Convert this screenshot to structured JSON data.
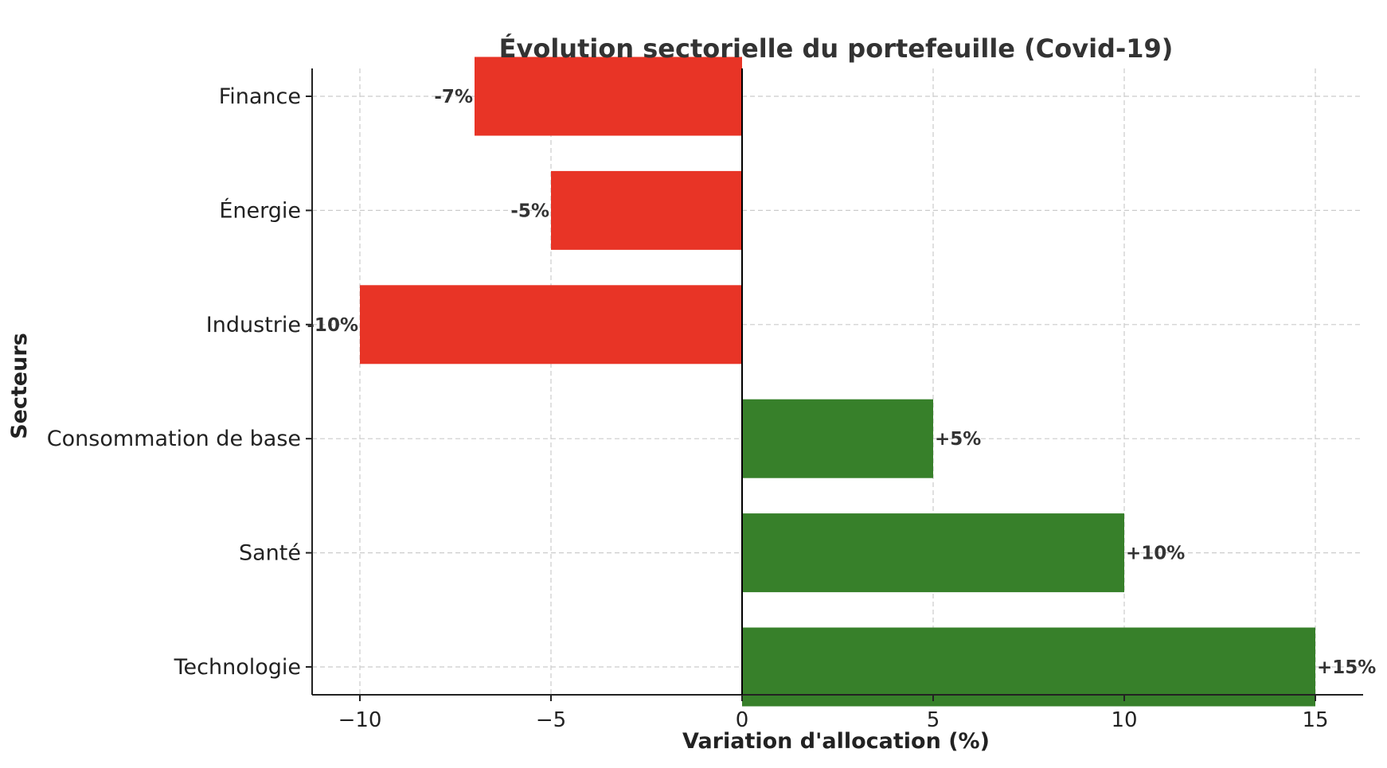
{
  "chart_data": {
    "type": "bar",
    "orientation": "horizontal",
    "title": "Évolution sectorielle du portefeuille (Covid-19)",
    "xlabel": "Variation d'allocation (%)",
    "ylabel": "Secteurs",
    "categories": [
      "Technologie",
      "Santé",
      "Consommation de base",
      "Industrie",
      "Énergie",
      "Finance"
    ],
    "values": [
      15,
      10,
      5,
      -10,
      -5,
      -7
    ],
    "data_labels": [
      "+15%",
      "+10%",
      "+5%",
      "-10%",
      "-5%",
      "-7%"
    ],
    "xlim": [
      -11.25,
      16.25
    ],
    "xticks": [
      -10,
      -5,
      0,
      5,
      10,
      15
    ],
    "xtick_labels": [
      "−10",
      "−5",
      "0",
      "5",
      "10",
      "15"
    ],
    "grid": true,
    "colors": {
      "positive": "#37802a",
      "negative": "#e83426"
    }
  }
}
